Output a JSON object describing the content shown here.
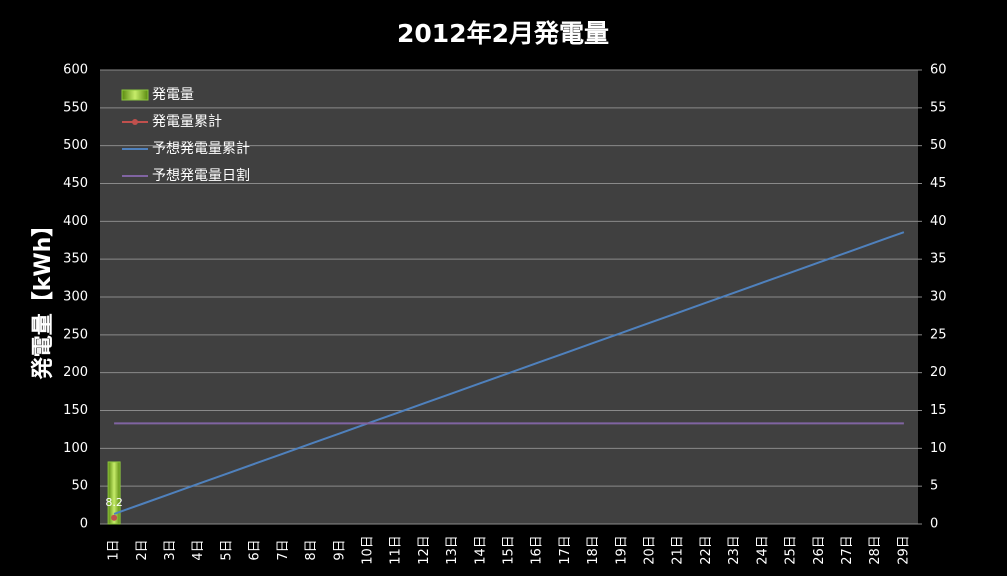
{
  "chart_data": {
    "type": "bar_line",
    "title": "2012年2月発電量",
    "y_label": "発電量【kWh】",
    "categories": [
      "1日",
      "2日",
      "3日",
      "4日",
      "5日",
      "6日",
      "7日",
      "8日",
      "9日",
      "10日",
      "11日",
      "12日",
      "13日",
      "14日",
      "15日",
      "16日",
      "17日",
      "18日",
      "19日",
      "20日",
      "21日",
      "22日",
      "23日",
      "24日",
      "25日",
      "26日",
      "27日",
      "28日",
      "29日"
    ],
    "series": [
      {
        "name": "発電量",
        "kind": "bar",
        "axis": "y2",
        "color": "#8dc63f",
        "values": [
          8.2,
          null,
          null,
          null,
          null,
          null,
          null,
          null,
          null,
          null,
          null,
          null,
          null,
          null,
          null,
          null,
          null,
          null,
          null,
          null,
          null,
          null,
          null,
          null,
          null,
          null,
          null,
          null,
          null
        ]
      },
      {
        "name": "発電量累計",
        "kind": "marker_line",
        "color": "#c0504d",
        "values": [
          8.2,
          null,
          null,
          null,
          null,
          null,
          null,
          null,
          null,
          null,
          null,
          null,
          null,
          null,
          null,
          null,
          null,
          null,
          null,
          null,
          null,
          null,
          null,
          null,
          null,
          null,
          null,
          null,
          null
        ]
      },
      {
        "name": "予想発電量累計",
        "kind": "line",
        "color": "#4f81bd",
        "values": [
          13.3,
          26.6,
          39.9,
          53.2,
          66.5,
          79.8,
          93.1,
          106.4,
          119.7,
          133,
          146.3,
          159.6,
          172.9,
          186.2,
          199.5,
          212.8,
          226.1,
          239.4,
          252.7,
          266,
          279.3,
          292.6,
          305.9,
          319.2,
          332.5,
          345.8,
          359.1,
          372.4,
          385.7
        ]
      },
      {
        "name": "予想発電量日割",
        "kind": "line",
        "axis": "y2",
        "color": "#8064a2",
        "values": [
          13.3,
          13.3,
          13.3,
          13.3,
          13.3,
          13.3,
          13.3,
          13.3,
          13.3,
          13.3,
          13.3,
          13.3,
          13.3,
          13.3,
          13.3,
          13.3,
          13.3,
          13.3,
          13.3,
          13.3,
          13.3,
          13.3,
          13.3,
          13.3,
          13.3,
          13.3,
          13.3,
          13.3,
          13.3
        ]
      }
    ],
    "ylim": [
      0,
      600
    ],
    "yticks": [
      0,
      50,
      100,
      150,
      200,
      250,
      300,
      350,
      400,
      450,
      500,
      550,
      600
    ],
    "y2lim": [
      0,
      60
    ],
    "y2ticks": [
      0,
      5,
      10,
      15,
      20,
      25,
      30,
      35,
      40,
      45,
      50,
      55,
      60
    ],
    "grid": true,
    "legend": "upper left"
  }
}
